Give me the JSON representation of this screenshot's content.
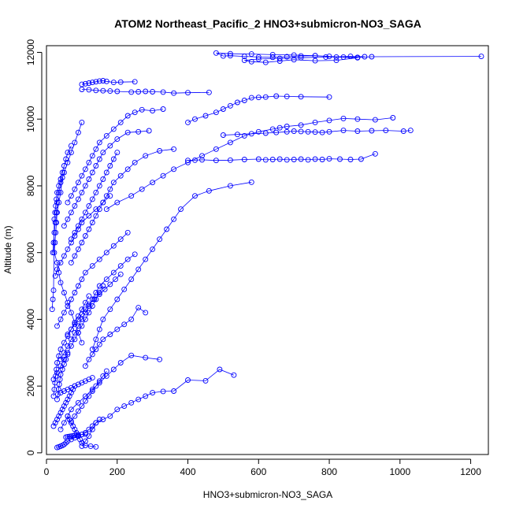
{
  "chart_data": {
    "type": "scatter",
    "title": "ATOM2 Northeast_Pacific_2 HNO3+submicron-NO3_SAGA",
    "xlabel": "HNO3+submicron-NO3_SAGA",
    "ylabel": "Altitude (m)",
    "xlim": [
      0,
      1250
    ],
    "ylim": [
      -50,
      12200
    ],
    "xticks": [
      0,
      200,
      400,
      600,
      800,
      1000,
      1200
    ],
    "yticks": [
      0,
      2000,
      4000,
      6000,
      8000,
      10000,
      12000
    ],
    "x_tick_labels": [
      "0",
      "200",
      "400",
      "600",
      "800",
      "1000",
      "1200"
    ],
    "y_tick_labels": [
      "0",
      "2000",
      "4000",
      "6000",
      "8000",
      "10000",
      "12000"
    ],
    "grid": false,
    "legend": "none",
    "marker": "open-circle",
    "connected": true,
    "colors": {
      "series": "#0000ff",
      "axis": "#000000"
    },
    "series": [
      {
        "x": [
          1230,
          920,
          880,
          840,
          800,
          760,
          720,
          680,
          640,
          600,
          560,
          520,
          500,
          480,
          520,
          580,
          640,
          700,
          760,
          820,
          880,
          820,
          760,
          700,
          660,
          620,
          580,
          560,
          600,
          660,
          720,
          790,
          860,
          900
        ],
        "y": [
          11880,
          11870,
          11850,
          11860,
          11880,
          11900,
          11890,
          11870,
          11850,
          11860,
          11880,
          11900,
          11890,
          11980,
          11960,
          11950,
          11930,
          11920,
          11900,
          11860,
          11840,
          11760,
          11750,
          11780,
          11740,
          11700,
          11720,
          11760,
          11800,
          11820,
          11840,
          11860,
          11880,
          11870
        ]
      },
      {
        "x": [
          250,
          210,
          190,
          170,
          160,
          150,
          140,
          130,
          120,
          110,
          100
        ],
        "y": [
          11120,
          11110,
          11100,
          11130,
          11150,
          11140,
          11120,
          11100,
          11080,
          11060,
          11040
        ]
      },
      {
        "x": [
          460,
          400,
          360,
          330,
          300,
          280,
          260,
          240,
          200,
          180,
          160,
          140,
          120,
          100
        ],
        "y": [
          10800,
          10790,
          10780,
          10810,
          10820,
          10830,
          10820,
          10810,
          10830,
          10840,
          10850,
          10860,
          10880,
          10890
        ]
      },
      {
        "x": [
          800,
          720,
          680,
          650,
          620,
          600,
          580,
          560,
          540,
          520,
          500,
          480,
          450,
          420,
          400
        ],
        "y": [
          10660,
          10670,
          10680,
          10690,
          10660,
          10650,
          10640,
          10560,
          10500,
          10400,
          10300,
          10200,
          10100,
          10000,
          9900
        ]
      },
      {
        "x": [
          1030,
          1010,
          960,
          920,
          880,
          840,
          800,
          780,
          760,
          740,
          720,
          700,
          680,
          650,
          620,
          580,
          540,
          500
        ],
        "y": [
          9660,
          9640,
          9660,
          9650,
          9640,
          9660,
          9620,
          9600,
          9610,
          9620,
          9630,
          9640,
          9620,
          9600,
          9580,
          9560,
          9540,
          9520
        ]
      },
      {
        "x": [
          930,
          890,
          860,
          830,
          800,
          780,
          760,
          740,
          720,
          700,
          680,
          660,
          640,
          620,
          600,
          560,
          520,
          480,
          440,
          420,
          400
        ],
        "y": [
          8960,
          8800,
          8790,
          8800,
          8810,
          8790,
          8800,
          8780,
          8800,
          8790,
          8780,
          8800,
          8790,
          8780,
          8800,
          8790,
          8770,
          8760,
          8780,
          8770,
          8760
        ]
      },
      {
        "x": [
          980,
          930,
          880,
          840,
          800,
          760,
          720,
          680,
          660,
          640,
          600,
          560,
          520,
          480,
          440,
          400,
          360,
          330,
          300,
          270,
          240,
          200,
          170
        ],
        "y": [
          10040,
          9980,
          10000,
          10020,
          9960,
          9900,
          9820,
          9780,
          9740,
          9700,
          9620,
          9500,
          9300,
          9100,
          8900,
          8700,
          8500,
          8300,
          8100,
          7900,
          7700,
          7500,
          7300
        ]
      },
      {
        "x": [
          580,
          520,
          460,
          420,
          380,
          360,
          340,
          320,
          300,
          280,
          260,
          240,
          220,
          200,
          180,
          160,
          150,
          140,
          130
        ],
        "y": [
          8110,
          8000,
          7850,
          7700,
          7300,
          7000,
          6700,
          6400,
          6100,
          5800,
          5500,
          5200,
          4900,
          4600,
          4300,
          4000,
          3700,
          3400,
          3100
        ]
      },
      {
        "x": [
          530,
          490,
          450,
          400,
          360,
          330,
          300,
          280,
          260,
          240,
          220,
          200,
          180,
          160,
          140,
          130,
          120,
          110,
          100
        ],
        "y": [
          2330,
          2500,
          2160,
          2180,
          1850,
          1840,
          1800,
          1700,
          1600,
          1500,
          1400,
          1300,
          1100,
          1000,
          900,
          700,
          500,
          350,
          200
        ]
      },
      {
        "x": [
          320,
          280,
          240,
          210,
          190,
          170,
          150,
          130,
          110,
          90,
          70,
          60,
          50,
          40
        ],
        "y": [
          2800,
          2850,
          2920,
          2700,
          2500,
          2300,
          2100,
          1900,
          1700,
          1500,
          1300,
          1100,
          900,
          700
        ]
      },
      {
        "x": [
          280,
          260,
          240,
          220,
          200,
          180,
          160,
          150,
          140,
          130,
          120,
          110
        ],
        "y": [
          4200,
          4350,
          4000,
          3850,
          3700,
          3550,
          3400,
          3250,
          3100,
          2950,
          2800,
          2600
        ]
      },
      {
        "x": [
          330,
          300,
          270,
          250,
          230,
          210,
          190,
          170,
          150,
          140,
          130,
          120,
          110,
          100,
          90,
          80,
          70,
          60
        ],
        "y": [
          10300,
          10250,
          10280,
          10200,
          10100,
          9900,
          9700,
          9500,
          9300,
          9100,
          8900,
          8700,
          8500,
          8300,
          8100,
          7900,
          7700,
          7500
        ]
      },
      {
        "x": [
          290,
          260,
          230,
          200,
          180,
          160,
          150,
          140,
          130,
          120,
          110,
          100,
          90,
          80,
          70,
          60,
          50
        ],
        "y": [
          9650,
          9620,
          9600,
          9400,
          9200,
          9000,
          8800,
          8600,
          8400,
          8200,
          8000,
          7800,
          7600,
          7400,
          7200,
          7000,
          6800
        ]
      },
      {
        "x": [
          360,
          320,
          280,
          250,
          230,
          210,
          190,
          180,
          170,
          160,
          150,
          140,
          130,
          120,
          110,
          100,
          90,
          80,
          70
        ],
        "y": [
          9100,
          9050,
          8900,
          8700,
          8500,
          8300,
          8100,
          7900,
          7700,
          7500,
          7300,
          7100,
          6900,
          6700,
          6500,
          6300,
          6100,
          5900,
          5700
        ]
      },
      {
        "x": [
          250,
          230,
          210,
          190,
          170,
          150,
          140,
          130,
          120,
          110,
          100,
          90,
          80,
          70,
          60,
          50,
          40
        ],
        "y": [
          5950,
          5800,
          5600,
          5400,
          5200,
          5000,
          4800,
          4600,
          4400,
          4200,
          4000,
          3800,
          3600,
          3400,
          3200,
          3000,
          2800
        ]
      },
      {
        "x": [
          230,
          210,
          190,
          170,
          150,
          130,
          110,
          100,
          90,
          80,
          70,
          60,
          50,
          40,
          30
        ],
        "y": [
          6600,
          6400,
          6200,
          6000,
          5800,
          5600,
          5400,
          5200,
          5000,
          4800,
          4600,
          4400,
          4200,
          4000,
          3800
        ]
      },
      {
        "x": [
          180,
          160,
          140,
          120,
          100,
          90,
          80,
          70,
          60,
          50,
          40,
          30,
          25
        ],
        "y": [
          7700,
          7500,
          7300,
          7100,
          6900,
          6700,
          6500,
          6300,
          6100,
          5900,
          5700,
          5500,
          5300
        ]
      },
      {
        "x": [
          160,
          150,
          140,
          130,
          120,
          110,
          100,
          90,
          80,
          70,
          60,
          50,
          40,
          30,
          20
        ],
        "y": [
          5000,
          4800,
          4600,
          4400,
          4200,
          4000,
          3800,
          3600,
          3400,
          3200,
          3000,
          2800,
          2600,
          2400,
          2200
        ]
      },
      {
        "x": [
          150,
          140,
          130,
          120,
          110,
          100,
          90,
          80,
          70,
          60,
          55,
          50,
          45,
          40,
          35,
          30
        ],
        "y": [
          1000,
          900,
          800,
          700,
          600,
          550,
          500,
          450,
          400,
          350,
          300,
          250,
          220,
          200,
          180,
          160
        ]
      },
      {
        "x": [
          140,
          125,
          110,
          100,
          95,
          90,
          85,
          80,
          75,
          70,
          65,
          60
        ],
        "y": [
          180,
          200,
          220,
          300,
          400,
          500,
          600,
          700,
          800,
          900,
          1000,
          1100
        ]
      },
      {
        "x": [
          100,
          90,
          80,
          70,
          60,
          50,
          40,
          35,
          30,
          28,
          25,
          22,
          20,
          18
        ],
        "y": [
          9900,
          9600,
          9300,
          9000,
          8700,
          8400,
          8100,
          7800,
          7500,
          7200,
          6900,
          6600,
          6300,
          6000
        ]
      },
      {
        "x": [
          70,
          60,
          55,
          50,
          45,
          40,
          35,
          30,
          28,
          26,
          24,
          22,
          20,
          18,
          16
        ],
        "y": [
          9200,
          9000,
          8800,
          8600,
          8400,
          8200,
          8000,
          7800,
          7600,
          7400,
          7200,
          7000,
          4870,
          4600,
          4300
        ]
      },
      {
        "x": [
          45,
          40,
          35,
          30,
          28,
          26,
          24,
          22,
          30,
          35,
          40,
          50,
          60,
          70,
          80,
          90,
          100
        ],
        "y": [
          8250,
          7800,
          7500,
          7200,
          6900,
          6600,
          6300,
          6000,
          5700,
          5400,
          5100,
          4800,
          4500,
          4200,
          3900,
          3600,
          3300
        ]
      },
      {
        "x": [
          120,
          110,
          100,
          90,
          80,
          70,
          60,
          50,
          40,
          35,
          30,
          28,
          26,
          24,
          22,
          20
        ],
        "y": [
          4700,
          4500,
          4300,
          4100,
          3900,
          3700,
          3500,
          3300,
          3100,
          2900,
          2700,
          2500,
          2300,
          2100,
          1900,
          1700
        ]
      },
      {
        "x": [
          80,
          75,
          70,
          65,
          60,
          55,
          50,
          45,
          40,
          35,
          30,
          25,
          20
        ],
        "y": [
          2000,
          1900,
          1800,
          1700,
          1600,
          1500,
          1400,
          1300,
          1200,
          1100,
          1000,
          900,
          800
        ]
      },
      {
        "x": [
          170,
          160,
          150,
          140,
          130,
          120,
          110,
          100,
          90,
          80,
          70
        ],
        "y": [
          2450,
          2300,
          2150,
          2000,
          1850,
          1700,
          1550,
          1400,
          1250,
          1100,
          950
        ]
      },
      {
        "x": [
          60,
          55,
          50,
          45,
          40,
          38,
          36,
          34,
          32,
          30
        ],
        "y": [
          2950,
          2800,
          2650,
          2500,
          2350,
          2200,
          2050,
          1900,
          1750,
          1600
        ]
      },
      {
        "x": [
          200,
          190,
          180,
          170,
          160,
          150,
          140,
          130,
          120,
          110,
          100,
          90,
          80,
          70
        ],
        "y": [
          9000,
          8800,
          8600,
          8400,
          8200,
          8000,
          7800,
          7600,
          7400,
          7200,
          7000,
          6800,
          6600,
          6400
        ]
      },
      {
        "x": [
          210,
          195,
          180,
          165,
          150,
          135,
          120,
          110,
          100,
          90,
          80,
          70,
          60
        ],
        "y": [
          5350,
          5200,
          5050,
          4900,
          4750,
          4600,
          4450,
          4300,
          4150,
          4000,
          3850,
          3700,
          3550
        ]
      },
      {
        "x": [
          130,
          120,
          110,
          100,
          90,
          80,
          70,
          60,
          50,
          40
        ],
        "y": [
          2250,
          2200,
          2150,
          2100,
          2050,
          2000,
          1950,
          1900,
          1850,
          1800
        ]
      },
      {
        "x": [
          110,
          100,
          90,
          85,
          80,
          75,
          70,
          65,
          60,
          55
        ],
        "y": [
          560,
          550,
          540,
          530,
          520,
          510,
          500,
          490,
          480,
          470
        ]
      }
    ]
  }
}
